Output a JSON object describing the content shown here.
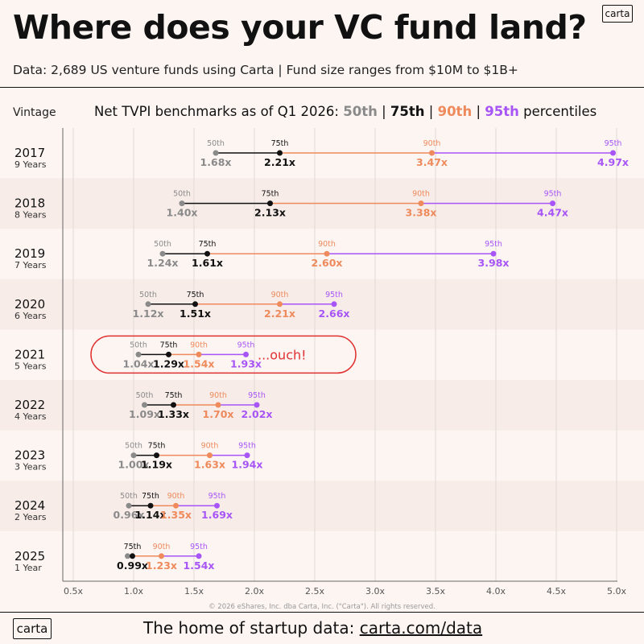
{
  "brand": "carta",
  "title": "Where does your VC fund land?",
  "subtitle": "Data: 2,689 US venture funds using Carta | Fund size ranges from $10M to $1B+",
  "footer": {
    "text": "The home of startup data: ",
    "url": "carta.com/data"
  },
  "copyright": "© 2026 eShares, Inc. dba Carta, Inc. (\"Carta\"). All rights reserved.",
  "colors": {
    "p50": "#8a8a8a",
    "p75": "#111111",
    "p90": "#ee8a5c",
    "p95": "#a855f7",
    "alt_row": "#f7ece8",
    "highlight": "#e03131"
  },
  "chart_data": {
    "type": "range-dot",
    "title_prefix": "Net TVPI benchmarks as of Q1 2026: ",
    "title_suffix": " percentiles",
    "row_axis_label": "Vintage",
    "percentiles": [
      {
        "key": "p50",
        "label": "50th"
      },
      {
        "key": "p75",
        "label": "75th"
      },
      {
        "key": "p90",
        "label": "90th"
      },
      {
        "key": "p95",
        "label": "95th"
      }
    ],
    "xlim": [
      0.4,
      5.1
    ],
    "xticks": [
      "0.5x",
      "1.0x",
      "1.5x",
      "2.0x",
      "2.5x",
      "3.0x",
      "3.5x",
      "4.0x",
      "4.5x",
      "5.0x"
    ],
    "xtick_values": [
      0.5,
      1.0,
      1.5,
      2.0,
      2.5,
      3.0,
      3.5,
      4.0,
      4.5,
      5.0
    ],
    "grid": true,
    "rows": [
      {
        "vintage": "2017",
        "age": "9 Years",
        "p50": 1.68,
        "p75": 2.21,
        "p90": 3.47,
        "p95": 4.97
      },
      {
        "vintage": "2018",
        "age": "8 Years",
        "p50": 1.4,
        "p75": 2.13,
        "p90": 3.38,
        "p95": 4.47
      },
      {
        "vintage": "2019",
        "age": "7 Years",
        "p50": 1.24,
        "p75": 1.61,
        "p90": 2.6,
        "p95": 3.98
      },
      {
        "vintage": "2020",
        "age": "6 Years",
        "p50": 1.12,
        "p75": 1.51,
        "p90": 2.21,
        "p95": 2.66
      },
      {
        "vintage": "2021",
        "age": "5 Years",
        "p50": 1.04,
        "p75": 1.29,
        "p90": 1.54,
        "p95": 1.93,
        "annotation": "...ouch!"
      },
      {
        "vintage": "2022",
        "age": "4 Years",
        "p50": 1.09,
        "p75": 1.33,
        "p90": 1.7,
        "p95": 2.02
      },
      {
        "vintage": "2023",
        "age": "3 Years",
        "p50": 1.0,
        "p75": 1.19,
        "p90": 1.63,
        "p95": 1.94
      },
      {
        "vintage": "2024",
        "age": "2 Years",
        "p50": 0.96,
        "p75": 1.14,
        "p90": 1.35,
        "p95": 1.69
      },
      {
        "vintage": "2025",
        "age": "1 Year",
        "p50": 0.95,
        "p75": 0.99,
        "p90": 1.23,
        "p95": 1.54,
        "hide": [
          "p50"
        ]
      }
    ]
  }
}
